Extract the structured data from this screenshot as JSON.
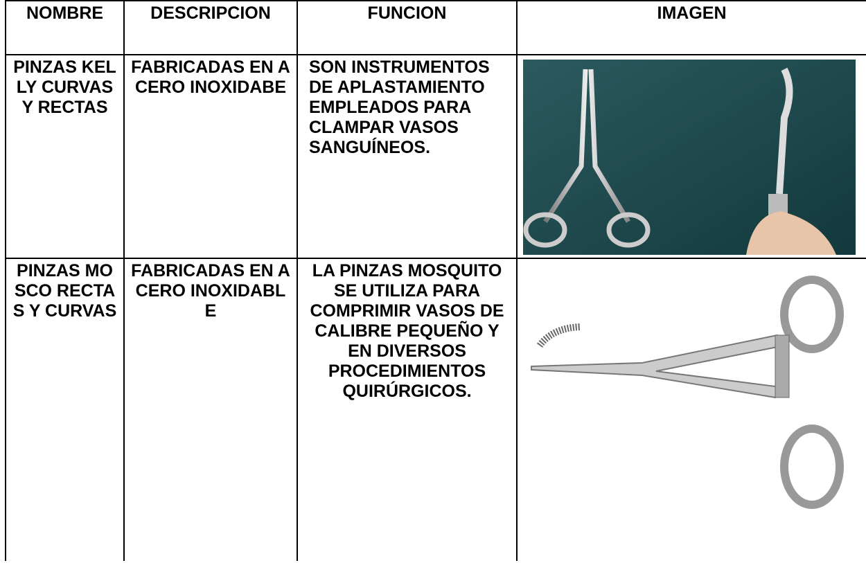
{
  "table": {
    "header": [
      "NOMBRE",
      "DESCRIPCION",
      "FUNCION",
      "IMAGEN"
    ],
    "rows": [
      [
        "PINZAS KELLY CURVAS Y RECTAS",
        "FABRICADAS EN ACERO INOXIDABE",
        "SON INSTRUMENTOS DE APLASTAMIENTO EMPLEADOS PARA CLAMPAR VASOS SANGUÍNEOS."
      ],
      [
        "PINZAS MOSCO RECTAS Y CURVAS",
        "FABRICADAS EN ACERO INOXIDABLE",
        "LA PINZAS MOSQUITO SE UTILIZA PARA COMPRIMIR VASOS DE CALIBRE PEQUEÑO Y EN DIVERSOS PROCEDIMIENTOS QUIRÚRGICOS."
      ]
    ]
  }
}
